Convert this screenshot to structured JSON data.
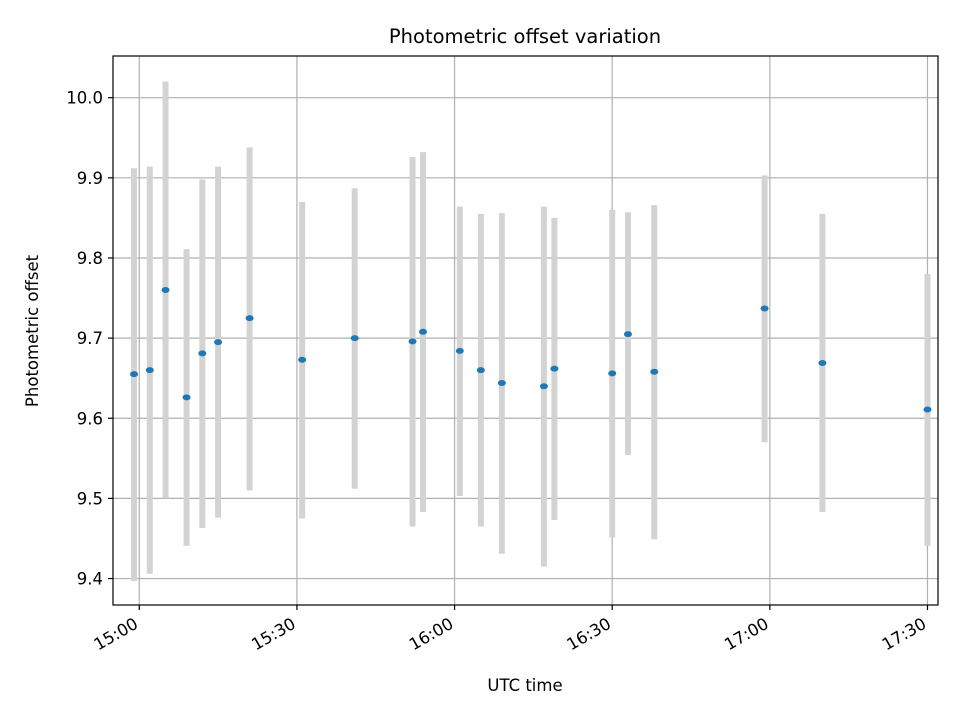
{
  "chart_data": {
    "type": "scatter",
    "title": "Photometric offset variation",
    "xlabel": "UTC time",
    "ylabel": "Photometric offset",
    "xlim": [
      "14:55",
      "17:32"
    ],
    "ylim": [
      9.367,
      10.052
    ],
    "xticks": [
      "15:00",
      "15:30",
      "16:00",
      "16:30",
      "17:00",
      "17:30"
    ],
    "yticks": [
      9.4,
      9.5,
      9.6,
      9.7,
      9.8,
      9.9,
      10.0
    ],
    "ytick_labels": [
      "9.4",
      "9.5",
      "9.6",
      "9.7",
      "9.8",
      "9.9",
      "10.0"
    ],
    "grid": true,
    "colors": {
      "point": "#1f77b4",
      "errorbar": "#d3d3d3",
      "grid": "#b0b0b0"
    },
    "series": [
      {
        "points": [
          {
            "x": "14:59",
            "y": 9.655,
            "ylow": 9.397,
            "yhigh": 9.912
          },
          {
            "x": "15:02",
            "y": 9.66,
            "ylow": 9.406,
            "yhigh": 9.914
          },
          {
            "x": "15:05",
            "y": 9.76,
            "ylow": 9.5,
            "yhigh": 10.02
          },
          {
            "x": "15:09",
            "y": 9.626,
            "ylow": 9.441,
            "yhigh": 9.811
          },
          {
            "x": "15:12",
            "y": 9.681,
            "ylow": 9.463,
            "yhigh": 9.898
          },
          {
            "x": "15:15",
            "y": 9.695,
            "ylow": 9.476,
            "yhigh": 9.914
          },
          {
            "x": "15:21",
            "y": 9.725,
            "ylow": 9.51,
            "yhigh": 9.938
          },
          {
            "x": "15:31",
            "y": 9.673,
            "ylow": 9.475,
            "yhigh": 9.87
          },
          {
            "x": "15:41",
            "y": 9.7,
            "ylow": 9.512,
            "yhigh": 9.887
          },
          {
            "x": "15:52",
            "y": 9.696,
            "ylow": 9.465,
            "yhigh": 9.926
          },
          {
            "x": "15:54",
            "y": 9.708,
            "ylow": 9.483,
            "yhigh": 9.932
          },
          {
            "x": "16:01",
            "y": 9.684,
            "ylow": 9.503,
            "yhigh": 9.864
          },
          {
            "x": "16:05",
            "y": 9.66,
            "ylow": 9.465,
            "yhigh": 9.855
          },
          {
            "x": "16:09",
            "y": 9.644,
            "ylow": 9.431,
            "yhigh": 9.856
          },
          {
            "x": "16:17",
            "y": 9.64,
            "ylow": 9.415,
            "yhigh": 9.864
          },
          {
            "x": "16:19",
            "y": 9.662,
            "ylow": 9.473,
            "yhigh": 9.85
          },
          {
            "x": "16:30",
            "y": 9.656,
            "ylow": 9.451,
            "yhigh": 9.86
          },
          {
            "x": "16:33",
            "y": 9.705,
            "ylow": 9.554,
            "yhigh": 9.857
          },
          {
            "x": "16:38",
            "y": 9.658,
            "ylow": 9.449,
            "yhigh": 9.866
          },
          {
            "x": "16:59",
            "y": 9.737,
            "ylow": 9.57,
            "yhigh": 9.903
          },
          {
            "x": "17:10",
            "y": 9.669,
            "ylow": 9.483,
            "yhigh": 9.855
          },
          {
            "x": "17:30",
            "y": 9.611,
            "ylow": 9.441,
            "yhigh": 9.78
          }
        ]
      }
    ]
  }
}
